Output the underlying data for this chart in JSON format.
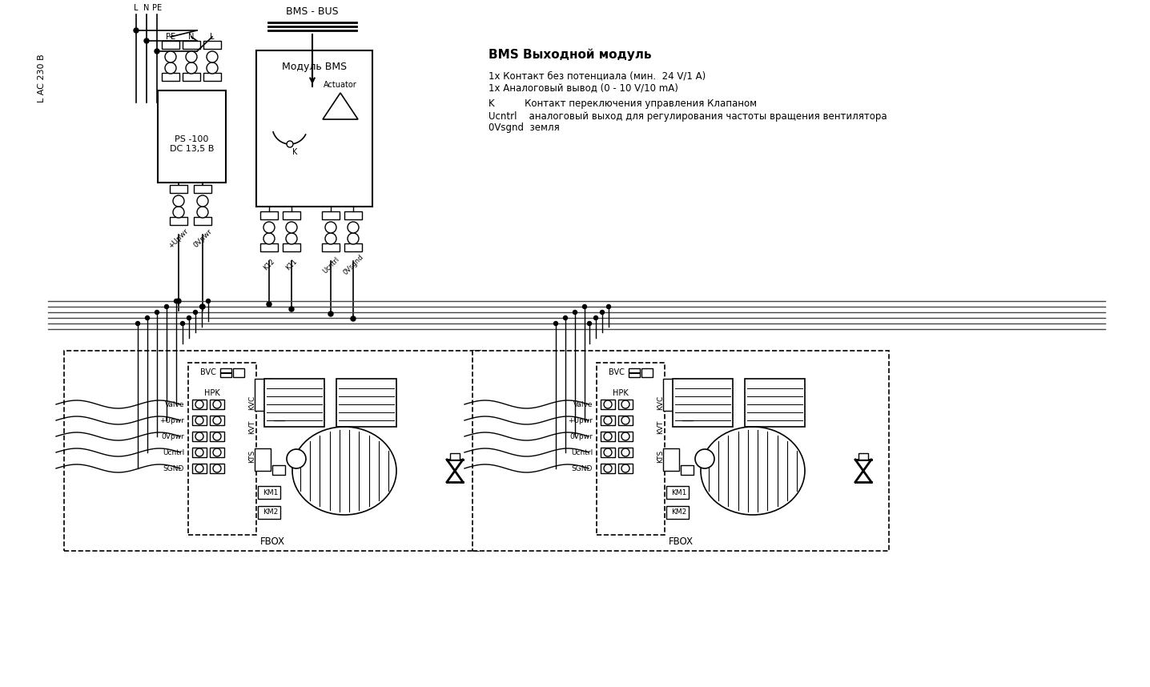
{
  "bg_color": "#ffffff",
  "line_color": "#000000",
  "bms_title": "BMS Выходной модуль",
  "bms_line1": "1х Контакт без потенциала (мин.  24 V/1 A)",
  "bms_line2": "1х Аналоговый вывод (0 - 10 V/10 mA)",
  "bms_line3": "K          Контакт переключения управления Клапаном",
  "bms_line4": "Ucntrl    аналоговый выход для регулирования частоты вращения вентилятора",
  "bms_line5": "0Vsgnd  земля",
  "bms_bus_label": "BMS - BUS",
  "modul_label": "Модуль BMS",
  "actuator_label": "Actuator",
  "ps_label": "PS -100\nDC 13,5 B",
  "fbox_label": "FBOX",
  "lac_label": "L AC 230 B"
}
